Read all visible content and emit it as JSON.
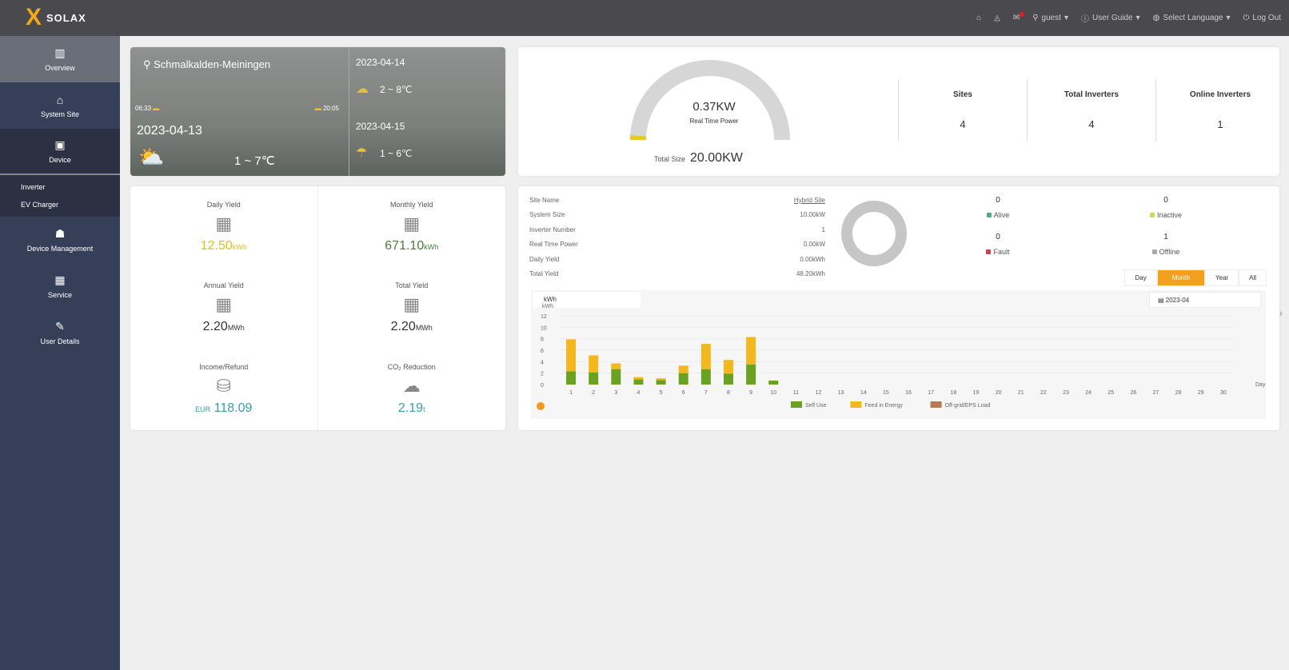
{
  "header": {
    "brand": "SOLAX",
    "user": "guest",
    "user_guide": "User Guide",
    "language": "Select Language",
    "logout": "Log Out"
  },
  "sidebar": {
    "items": [
      {
        "label": "Overview",
        "icon": "chart-icon"
      },
      {
        "label": "System Site",
        "icon": "home-icon"
      },
      {
        "label": "Device",
        "icon": "device-icon"
      }
    ],
    "sub": [
      "Inverter",
      "EV Charger"
    ],
    "items2": [
      {
        "label": "Device Management",
        "icon": "device-mgmt-icon"
      },
      {
        "label": "Service",
        "icon": "service-icon"
      },
      {
        "label": "User Details",
        "icon": "pen-icon"
      }
    ]
  },
  "weather": {
    "location": "Schmalkalden-Meiningen",
    "sunrise": "06:33",
    "sunset": "20:05",
    "today": {
      "date": "2023-04-13",
      "temp": "1 ~ 7℃"
    },
    "forecast": [
      {
        "date": "2023-04-14",
        "temp": "2 ~ 8℃"
      },
      {
        "date": "2023-04-15",
        "temp": "1 ~ 6℃"
      }
    ]
  },
  "stats": [
    {
      "label": "Daily Yield",
      "value": "12.50",
      "unit": "kWh",
      "color": "#d9c21a"
    },
    {
      "label": "Monthly Yield",
      "value": "671.10",
      "unit": "kWh",
      "color": "#4a7a3a"
    },
    {
      "label": "Annual Yield",
      "value": "2.20",
      "unit": "MWh",
      "color": "#333333"
    },
    {
      "label": "Total Yield",
      "value": "2.20",
      "unit": "MWh",
      "color": "#333333"
    },
    {
      "label": "Income/Refund",
      "value": "118.09",
      "unit": "EUR",
      "color": "#3aa0a8"
    },
    {
      "label": "CO₂ Reduction",
      "value": "2.19",
      "unit": "t",
      "color": "#3aa0a8"
    }
  ],
  "summary": {
    "power": "0.37KW",
    "power_label": "Real Time Power",
    "power_fraction": 0.0185,
    "total_label": "Total Size",
    "total": "20.00KW",
    "kpis": [
      {
        "label": "Sites",
        "value": "4"
      },
      {
        "label": "Total Inverters",
        "value": "4"
      },
      {
        "label": "Online Inverters",
        "value": "1"
      }
    ]
  },
  "site": {
    "info": [
      {
        "k": "Site Name",
        "v": "Hybrid Site"
      },
      {
        "k": "System Size",
        "v": "10.00kW"
      },
      {
        "k": "Inverter Number",
        "v": "1"
      },
      {
        "k": "Real Time Power",
        "v": "0.00kW"
      },
      {
        "k": "Daily Yield",
        "v": "0.00kWh"
      },
      {
        "k": "Total Yield",
        "v": "48.20kWh"
      }
    ],
    "status": [
      {
        "label": "Alive",
        "count": "0",
        "color": "#4caf7a"
      },
      {
        "label": "Inactive",
        "count": "0",
        "color": "#d8d84a"
      },
      {
        "label": "Fault",
        "count": "0",
        "color": "#d04050"
      },
      {
        "label": "Offline",
        "count": "1",
        "color": "#aaaaaa"
      }
    ],
    "tabs": [
      "Day",
      "Month",
      "Year",
      "All"
    ],
    "active_tab": "Month",
    "unit_select": "kWh",
    "date": "2023-04"
  },
  "chart_data": {
    "type": "bar",
    "stacked": true,
    "ylabel": "kWh",
    "ylim": [
      0,
      12
    ],
    "yticks": [
      0,
      2,
      4,
      6,
      8,
      10,
      12
    ],
    "categories": [
      "1",
      "2",
      "3",
      "4",
      "5",
      "6",
      "7",
      "8",
      "9",
      "10",
      "11",
      "12",
      "13",
      "14",
      "15",
      "16",
      "17",
      "18",
      "19",
      "20",
      "21",
      "22",
      "23",
      "24",
      "25",
      "26",
      "27",
      "28",
      "29",
      "30"
    ],
    "xlabel": "Day",
    "legend_position": "bottom",
    "series": [
      {
        "name": "Self Use",
        "color": "#6aa120",
        "values": [
          2.3,
          2.1,
          2.7,
          0.9,
          0.8,
          2.0,
          2.7,
          1.9,
          3.5,
          0.7,
          0,
          0,
          0,
          0,
          0,
          0,
          0,
          0,
          0,
          0,
          0,
          0,
          0,
          0,
          0,
          0,
          0,
          0,
          0,
          0
        ]
      },
      {
        "name": "Feed in Energy",
        "color": "#f2b81d",
        "values": [
          5.6,
          3.0,
          1.0,
          0.4,
          0.3,
          1.3,
          4.4,
          2.4,
          4.8,
          0,
          0,
          0,
          0,
          0,
          0,
          0,
          0,
          0,
          0,
          0,
          0,
          0,
          0,
          0,
          0,
          0,
          0,
          0,
          0,
          0
        ]
      },
      {
        "name": "Off-grid/EPS Load",
        "color": "#b87a55",
        "values": [
          0,
          0,
          0,
          0,
          0,
          0,
          0,
          0,
          0,
          0,
          0,
          0,
          0,
          0,
          0,
          0,
          0,
          0,
          0,
          0,
          0,
          0,
          0,
          0,
          0,
          0,
          0,
          0,
          0,
          0
        ]
      }
    ]
  }
}
